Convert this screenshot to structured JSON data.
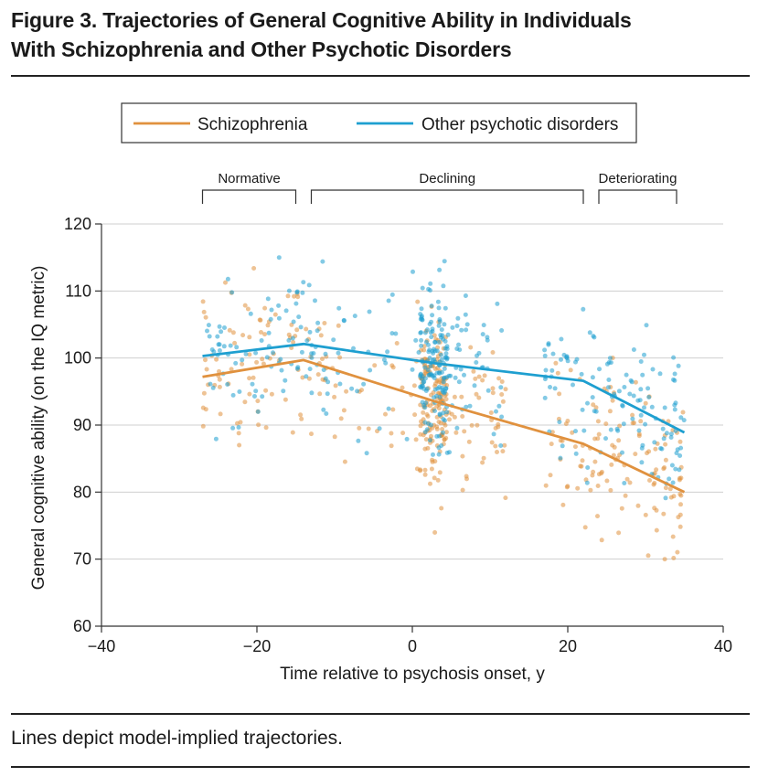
{
  "figure": {
    "title_line1": "Figure 3. Trajectories of General Cognitive Ability in Individuals",
    "title_line2": "With Schizophrenia and Other Psychotic Disorders",
    "caption": "Lines depict model-implied trajectories."
  },
  "chart_data": {
    "type": "scatter",
    "xlabel": "Time relative to psychosis onset, y",
    "ylabel": "General cognitive ability (on the IQ metric)",
    "xlim": [
      -40,
      40
    ],
    "ylim": [
      60,
      120
    ],
    "xticks": [
      -40,
      -20,
      0,
      20,
      40
    ],
    "yticks": [
      60,
      70,
      80,
      90,
      100,
      110,
      120
    ],
    "xtick_labels": [
      "−40",
      "−20",
      "0",
      "20",
      "40"
    ],
    "ytick_labels": [
      "60",
      "70",
      "80",
      "90",
      "100",
      "110",
      "120"
    ],
    "grid": "horizontal",
    "legend_position": "top",
    "phases": [
      {
        "label": "Normative",
        "x_range": [
          -27,
          -15
        ]
      },
      {
        "label": "Declining",
        "x_range": [
          -13,
          22
        ]
      },
      {
        "label": "Deteriorating",
        "x_range": [
          24,
          34
        ]
      }
    ],
    "series": [
      {
        "name": "Schizophrenia",
        "color": "#E0913E",
        "trajectory_x": [
          -27,
          -14,
          3,
          22,
          35
        ],
        "trajectory_y": [
          97.2,
          99.7,
          93.5,
          87.2,
          80.0
        ],
        "points_x_range": [
          -27,
          35
        ],
        "points_y_range": [
          70,
          115
        ]
      },
      {
        "name": "Other psychotic disorders",
        "color": "#1E9FD0",
        "trajectory_x": [
          -27,
          -14,
          3,
          22,
          35
        ],
        "trajectory_y": [
          100.3,
          102.1,
          99.2,
          96.6,
          88.9
        ],
        "points_x_range": [
          -27,
          35
        ],
        "points_y_range": [
          70,
          115
        ]
      }
    ]
  }
}
